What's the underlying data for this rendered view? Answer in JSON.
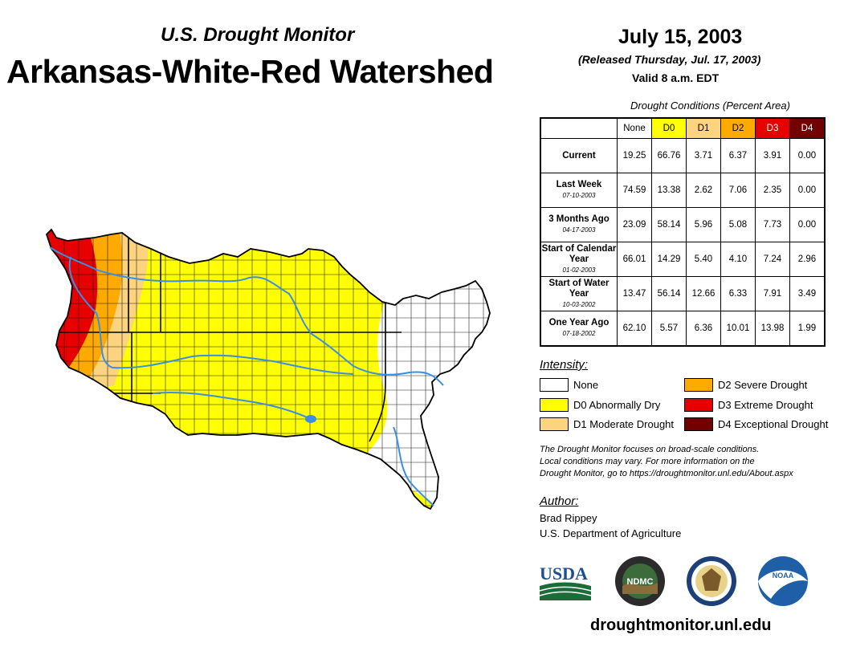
{
  "header": {
    "subtitle": "U.S. Drought Monitor",
    "title": "Arkansas-White-Red Watershed",
    "date": "July 15, 2003",
    "released": "(Released Thursday, Jul. 17, 2003)",
    "valid": "Valid 8 a.m. EDT"
  },
  "table": {
    "caption": "Drought Conditions (Percent Area)",
    "columns": [
      {
        "label": "None",
        "color": "#ffffff",
        "text_color": "#000000"
      },
      {
        "label": "D0",
        "color": "#ffff00",
        "text_color": "#000000"
      },
      {
        "label": "D1",
        "color": "#fcd37f",
        "text_color": "#000000"
      },
      {
        "label": "D2",
        "color": "#ffaa00",
        "text_color": "#000000"
      },
      {
        "label": "D3",
        "color": "#e60000",
        "text_color": "#ffffff"
      },
      {
        "label": "D4",
        "color": "#730000",
        "text_color": "#ffffff"
      }
    ],
    "rows": [
      {
        "label": "Current",
        "date": "",
        "values": [
          "19.25",
          "66.76",
          "3.71",
          "6.37",
          "3.91",
          "0.00"
        ]
      },
      {
        "label": "Last Week",
        "date": "07-10-2003",
        "values": [
          "74.59",
          "13.38",
          "2.62",
          "7.06",
          "2.35",
          "0.00"
        ]
      },
      {
        "label": "3 Months Ago",
        "date": "04-17-2003",
        "values": [
          "23.09",
          "58.14",
          "5.96",
          "5.08",
          "7.73",
          "0.00"
        ]
      },
      {
        "label": "Start of Calendar Year",
        "date": "01-02-2003",
        "values": [
          "66.01",
          "14.29",
          "5.40",
          "4.10",
          "7.24",
          "2.96"
        ]
      },
      {
        "label": "Start of Water Year",
        "date": "10-03-2002",
        "values": [
          "13.47",
          "56.14",
          "12.66",
          "6.33",
          "7.91",
          "3.49"
        ]
      },
      {
        "label": "One Year Ago",
        "date": "07-18-2002",
        "values": [
          "62.10",
          "5.57",
          "6.36",
          "10.01",
          "13.98",
          "1.99"
        ]
      }
    ]
  },
  "legend": {
    "heading": "Intensity:",
    "items": [
      {
        "label": "None",
        "color": "#ffffff"
      },
      {
        "label": "D0 Abnormally Dry",
        "color": "#ffff00"
      },
      {
        "label": "D1 Moderate Drought",
        "color": "#fcd37f"
      },
      {
        "label": "D2 Severe Drought",
        "color": "#ffaa00"
      },
      {
        "label": "D3 Extreme Drought",
        "color": "#e60000"
      },
      {
        "label": "D4 Exceptional Drought",
        "color": "#730000"
      }
    ]
  },
  "note": {
    "line1": "The Drought Monitor focuses on broad-scale conditions.",
    "line2": "Local conditions may vary. For more information on the",
    "line3": "Drought Monitor, go to https://droughtmonitor.unl.edu/About.aspx"
  },
  "author": {
    "heading": "Author:",
    "name": "Brad Rippey",
    "org": "U.S. Department of Agriculture"
  },
  "logos": {
    "usda": "USDA",
    "ndmc": "NDMC",
    "noaa": "NOAA"
  },
  "footer_url": "droughtmonitor.unl.edu"
}
